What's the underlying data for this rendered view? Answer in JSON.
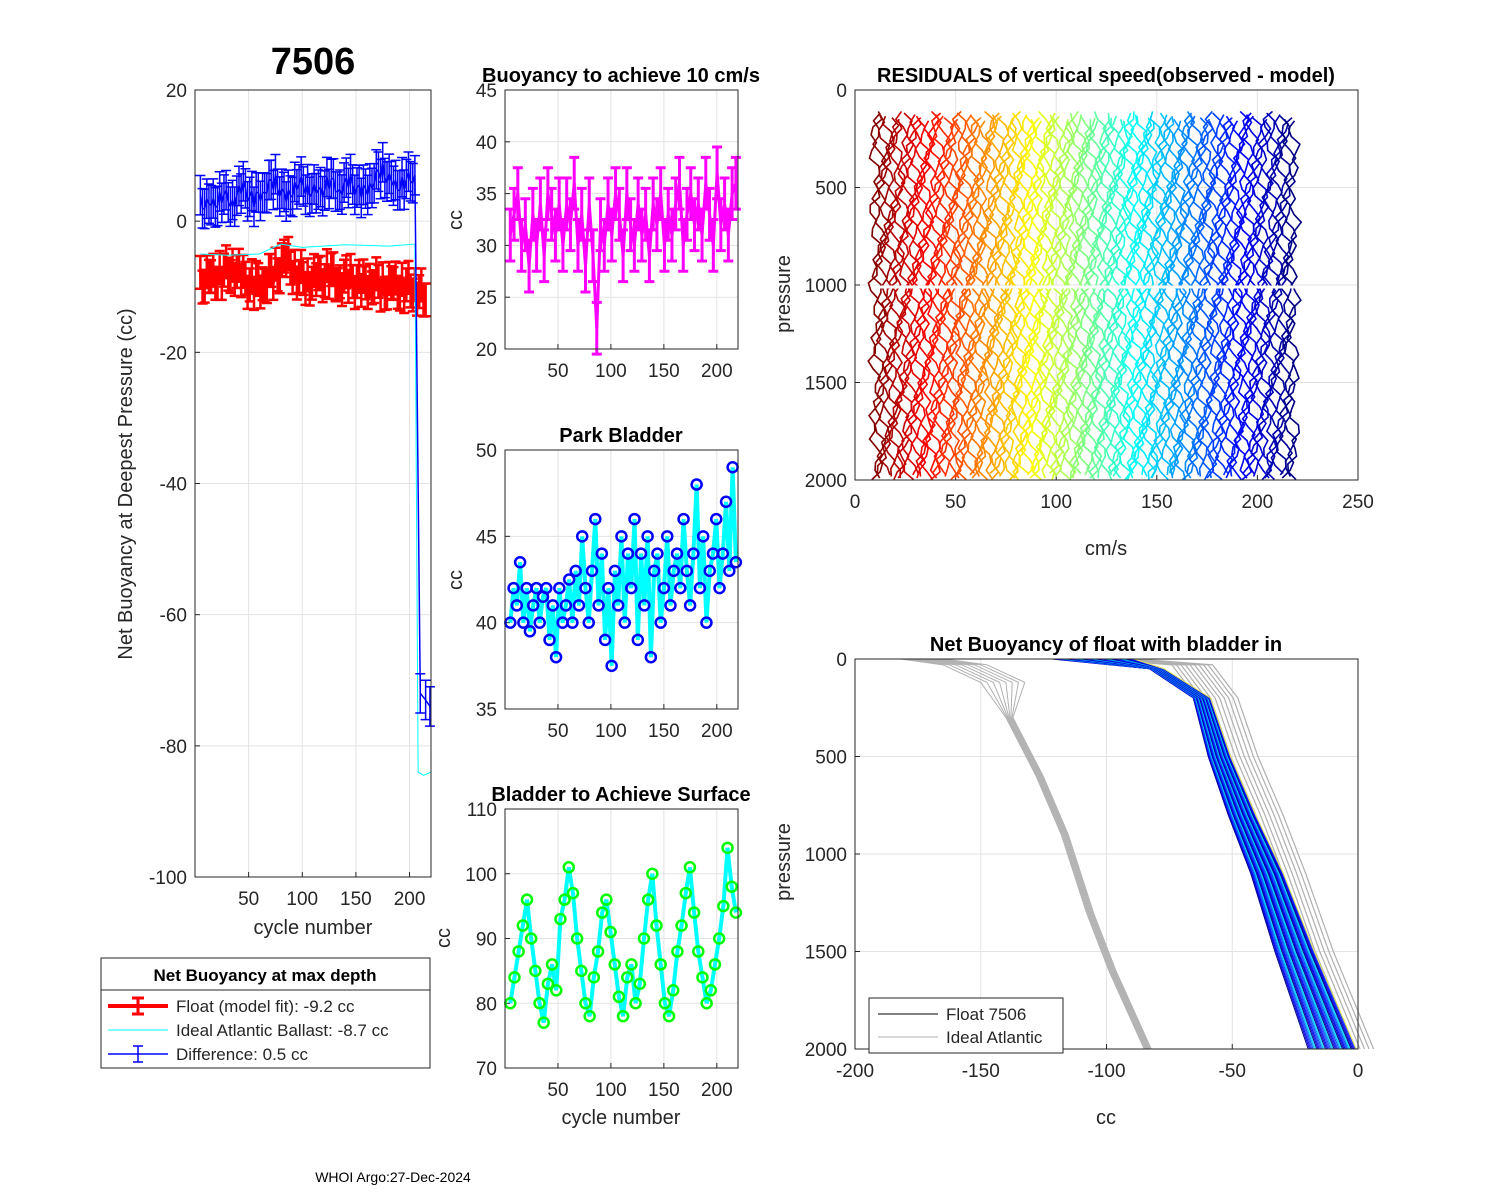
{
  "figure": {
    "float_id": "7506",
    "footer": "WHOI Argo:27-Dec-2024",
    "colors": {
      "float": "#ff0000",
      "ideal": "#00ffff",
      "difference": "#0000ff",
      "magenta": "#ff00ff",
      "green": "#00ff00",
      "grid": "#e6e6e6"
    }
  },
  "legend1": {
    "title": "Net Buoyancy at max depth",
    "entries": [
      {
        "label": "Float (model fit):  -9.2 cc",
        "color": "#ff0000"
      },
      {
        "label": "Ideal Atlantic Ballast:  -8.7 cc",
        "color": "#00ffff"
      },
      {
        "label": "Difference:   0.5 cc",
        "color": "#0000ff"
      }
    ]
  },
  "legend2": {
    "entries": [
      {
        "label": "Float 7506",
        "color": "#000000"
      },
      {
        "label": "Ideal Atlantic",
        "color": "#b0b0b0"
      }
    ]
  },
  "chart_data": [
    {
      "id": "net_buoyancy",
      "type": "line",
      "title": "7506",
      "xlabel": "cycle number",
      "ylabel": "Net Buoyancy at Deepest Pressure (cc)",
      "xlim": [
        0,
        220
      ],
      "ylim": [
        -100,
        20
      ],
      "xticks": [
        50,
        100,
        150,
        200
      ],
      "yticks": [
        20,
        0,
        -20,
        -40,
        -60,
        -80,
        -100
      ],
      "series": [
        {
          "name": "Float (model fit)",
          "color": "#ff0000",
          "error_bar": 2.5,
          "points": [
            [
              5,
              -9
            ],
            [
              15,
              -9
            ],
            [
              25,
              -8
            ],
            [
              35,
              -7
            ],
            [
              45,
              -9
            ],
            [
              55,
              -10
            ],
            [
              65,
              -9
            ],
            [
              75,
              -8
            ],
            [
              85,
              -6
            ],
            [
              95,
              -8
            ],
            [
              105,
              -9
            ],
            [
              115,
              -9
            ],
            [
              125,
              -8
            ],
            [
              135,
              -9
            ],
            [
              145,
              -9
            ],
            [
              155,
              -10
            ],
            [
              165,
              -9
            ],
            [
              175,
              -10
            ],
            [
              185,
              -10
            ],
            [
              195,
              -10
            ],
            [
              205,
              -10
            ],
            [
              215,
              -12
            ]
          ]
        },
        {
          "name": "Ideal Atlantic Ballast",
          "color": "#00ffff",
          "points": [
            [
              5,
              -5
            ],
            [
              30,
              -5.2
            ],
            [
              60,
              -5
            ],
            [
              80,
              -3.5
            ],
            [
              100,
              -4
            ],
            [
              140,
              -3.6
            ],
            [
              180,
              -3.8
            ],
            [
              205,
              -3.5
            ],
            [
              208,
              -84
            ],
            [
              213,
              -84.5
            ],
            [
              220,
              -84
            ]
          ]
        },
        {
          "name": "Difference",
          "color": "#0000ff",
          "error_bar": 3,
          "points": [
            [
              5,
              3
            ],
            [
              15,
              2
            ],
            [
              25,
              4
            ],
            [
              35,
              3
            ],
            [
              45,
              5
            ],
            [
              55,
              3
            ],
            [
              65,
              5
            ],
            [
              75,
              6
            ],
            [
              85,
              3
            ],
            [
              95,
              6
            ],
            [
              105,
              5
            ],
            [
              115,
              4
            ],
            [
              125,
              6
            ],
            [
              135,
              5
            ],
            [
              145,
              6
            ],
            [
              155,
              4
            ],
            [
              165,
              6
            ],
            [
              175,
              8
            ],
            [
              185,
              5
            ],
            [
              195,
              6
            ],
            [
              205,
              7
            ],
            [
              210,
              -72
            ],
            [
              215,
              -73
            ],
            [
              219,
              -74
            ]
          ]
        }
      ]
    },
    {
      "id": "buoyancy_10cms",
      "type": "line",
      "title": "Buoyancy to achieve 10 cm/s",
      "xlabel": "",
      "ylabel": "cc",
      "xlim": [
        0,
        220
      ],
      "ylim": [
        20,
        45
      ],
      "xticks": [
        50,
        100,
        150,
        200
      ],
      "yticks": [
        45,
        40,
        35,
        30,
        25,
        20
      ],
      "series": [
        {
          "name": "buoyancy",
          "color": "#ff00ff",
          "error_bar": 2.5,
          "values": [
            31,
            33,
            35,
            30,
            32,
            28,
            33,
            30,
            34,
            29,
            35,
            33,
            31,
            34,
            30,
            34,
            32,
            36,
            30,
            33,
            28,
            34,
            29,
            22,
            32,
            30,
            34,
            31,
            35,
            33,
            29,
            35,
            32,
            30,
            34,
            31,
            33,
            29,
            34,
            32,
            35,
            30,
            33,
            31,
            34,
            36,
            30,
            33,
            35,
            32,
            34,
            31,
            36,
            33,
            30,
            37,
            32,
            34,
            31,
            35,
            36
          ]
        }
      ]
    },
    {
      "id": "park_bladder",
      "type": "line",
      "title": "Park Bladder",
      "xlabel": "",
      "ylabel": "cc",
      "xlim": [
        0,
        220
      ],
      "ylim": [
        35,
        50
      ],
      "xticks": [
        50,
        100,
        150,
        200
      ],
      "yticks": [
        50,
        45,
        40,
        35
      ],
      "series": [
        {
          "name": "park bladder",
          "color": "#00ffff",
          "marker_color": "#0000ff",
          "values": [
            40,
            42,
            41,
            43.5,
            40,
            42,
            39.5,
            41,
            42,
            40,
            41.5,
            42,
            39,
            41,
            38,
            42,
            40,
            41,
            42.5,
            40,
            43,
            41,
            45,
            42,
            40,
            43,
            46,
            41,
            44,
            39,
            42,
            37.5,
            43,
            41,
            45,
            40,
            44,
            42,
            46,
            39,
            44,
            41,
            45,
            38,
            43,
            44,
            40,
            42,
            45,
            41,
            43,
            44,
            42,
            46,
            43,
            41,
            44,
            48,
            42,
            45,
            40,
            43,
            44,
            46,
            42,
            44,
            47,
            43,
            49,
            43.5
          ]
        }
      ]
    },
    {
      "id": "bladder_surface",
      "type": "line",
      "title": "Bladder to Achieve Surface",
      "xlabel": "cycle number",
      "ylabel": "cc",
      "xlim": [
        0,
        220
      ],
      "ylim": [
        70,
        110
      ],
      "xticks": [
        50,
        100,
        150,
        200
      ],
      "yticks": [
        110,
        100,
        90,
        80,
        70
      ],
      "series": [
        {
          "name": "surface bladder",
          "color": "#00ffff",
          "marker_color": "#00ff00",
          "values": [
            80,
            84,
            88,
            92,
            96,
            90,
            85,
            80,
            77,
            83,
            86,
            82,
            93,
            96,
            101,
            97,
            90,
            85,
            80,
            78,
            84,
            88,
            94,
            96,
            91,
            86,
            81,
            78,
            84,
            86,
            80,
            83,
            90,
            96,
            100,
            92,
            86,
            80,
            78,
            82,
            88,
            92,
            97,
            101,
            94,
            88,
            84,
            80,
            82,
            86,
            90,
            95,
            104,
            98,
            94
          ]
        }
      ]
    },
    {
      "id": "residuals",
      "type": "line",
      "title": "RESIDUALS of vertical speed(observed - model)",
      "xlabel": "cm/s",
      "ylabel": "pressure",
      "xlim": [
        0,
        250
      ],
      "ylim": [
        0,
        2000
      ],
      "xticks": [
        0,
        50,
        100,
        150,
        200,
        250
      ],
      "yticks": [
        0,
        500,
        1000,
        1500,
        2000
      ],
      "profile_offsets_start": 10,
      "profile_offsets_end": 218,
      "profile_count": 105,
      "colormap": "jet (red to blue)"
    },
    {
      "id": "net_buoyancy_profile",
      "type": "line",
      "title": "Net Buoyancy of float with bladder in",
      "xlabel": "cc",
      "ylabel": "pressure",
      "xlim": [
        -200,
        0
      ],
      "ylim": [
        0,
        2000
      ],
      "xticks": [
        -200,
        -150,
        -100,
        -50,
        0
      ],
      "yticks": [
        0,
        500,
        1000,
        1500,
        2000
      ],
      "series": [
        {
          "name": "Float 7506",
          "color": "#0000cc",
          "points": [
            [
              -105,
              0
            ],
            [
              -80,
              50
            ],
            [
              -62,
              200
            ],
            [
              -55,
              500
            ],
            [
              -46,
              800
            ],
            [
              -36,
              1100
            ],
            [
              -25,
              1500
            ],
            [
              -10,
              2000
            ]
          ]
        },
        {
          "name": "Ideal Atlantic",
          "color": "#b0b0b0",
          "points": [
            [
              -182,
              0
            ],
            [
              -165,
              30
            ],
            [
              -150,
              120
            ],
            [
              -140,
              300
            ],
            [
              -128,
              600
            ],
            [
              -118,
              900
            ],
            [
              -108,
              1300
            ],
            [
              -99,
              1600
            ],
            [
              -85,
              2000
            ]
          ]
        },
        {
          "name": "Ideal Atlantic (shifted)",
          "color": "#b0b0b0",
          "points": [
            [
              -100,
              0
            ],
            [
              -70,
              30
            ],
            [
              -60,
              200
            ],
            [
              -52,
              500
            ],
            [
              -42,
              800
            ],
            [
              -33,
              1100
            ],
            [
              -22,
              1500
            ],
            [
              -6,
              2000
            ]
          ]
        }
      ]
    }
  ]
}
